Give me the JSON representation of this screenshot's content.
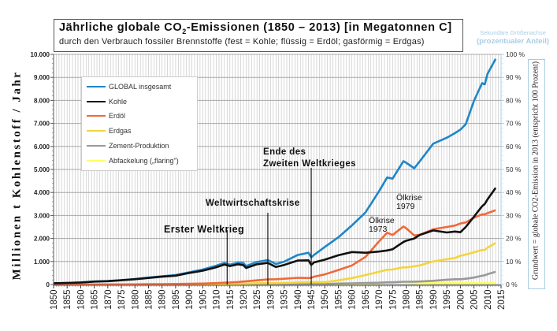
{
  "chart_data": {
    "type": "line",
    "title": "Jährliche globale CO2-Emissionen (1850 – 2013) [in Megatonnen C]",
    "title_parts": {
      "pre": "Jährliche globale CO",
      "sub": "2",
      "post": "-Emissionen (1850 – 2013) [in Megatonnen C]"
    },
    "subtitle": "durch den Verbrauch fossiler Brennstoffe (fest = Kohle; flüssig = Erdöl; gasförmig = Erdgas)",
    "xlabel": "",
    "ylabel": "Millionen t Kohlenstoff / Jahr",
    "y2label": "Grundwert = globale CO2-Emission in 2013 (entspricht 100 Prozent)",
    "secondary_axis_note": {
      "line1": "Sekundäre Größenachse",
      "line2": "(prozentualer Anteil)"
    },
    "xlim": [
      1850,
      2015
    ],
    "ylim": [
      0,
      10000
    ],
    "y2lim": [
      0,
      100
    ],
    "grid": true,
    "legend_position": "top-left",
    "x_ticks": [
      "1850",
      "1855",
      "1860",
      "1865",
      "1870",
      "1875",
      "1880",
      "1885",
      "1890",
      "1895",
      "1900",
      "1905",
      "1910",
      "1915",
      "1920",
      "1925",
      "1930",
      "1935",
      "1940",
      "1945",
      "1950",
      "1955",
      "1960",
      "1965",
      "1970",
      "1975",
      "1980",
      "1985",
      "1990",
      "1995",
      "2000",
      "2005",
      "2010",
      "2015"
    ],
    "y_ticks": [
      "0",
      "1.000",
      "2.000",
      "3.000",
      "4.000",
      "5.000",
      "6.000",
      "7.000",
      "8.000",
      "9.000",
      "10.000"
    ],
    "y2_ticks": [
      "0 %",
      "10 %",
      "20 %",
      "30 %",
      "40 %",
      "50 %",
      "60 %",
      "70 %",
      "80 %",
      "90 %",
      "100 %"
    ],
    "x": [
      1850,
      1855,
      1860,
      1865,
      1870,
      1875,
      1880,
      1885,
      1890,
      1895,
      1900,
      1905,
      1910,
      1913,
      1915,
      1918,
      1920,
      1921,
      1925,
      1929,
      1932,
      1935,
      1940,
      1944,
      1945,
      1946,
      1950,
      1955,
      1960,
      1965,
      1970,
      1973,
      1975,
      1979,
      1980,
      1983,
      1985,
      1990,
      1995,
      1998,
      2000,
      2002,
      2005,
      2008,
      2009,
      2010,
      2013
    ],
    "series": [
      {
        "name": "GLOBAL insgesamt",
        "color": "#1f86c8",
        "values": [
          54,
          70,
          90,
          130,
          150,
          190,
          240,
          300,
          360,
          410,
          530,
          650,
          820,
          940,
          860,
          950,
          930,
          800,
          980,
          1060,
          890,
          990,
          1280,
          1380,
          1180,
          1280,
          1630,
          2050,
          2570,
          3130,
          4050,
          4650,
          4600,
          5360,
          5290,
          5050,
          5350,
          6120,
          6380,
          6580,
          6730,
          6970,
          7980,
          8750,
          8700,
          9150,
          9800
        ]
      },
      {
        "name": "Kohle",
        "color": "#111111",
        "values": [
          54,
          68,
          88,
          126,
          145,
          185,
          230,
          285,
          340,
          385,
          500,
          600,
          750,
          870,
          800,
          880,
          840,
          720,
          880,
          940,
          760,
          850,
          1040,
          1050,
          850,
          960,
          1080,
          1270,
          1410,
          1380,
          1430,
          1480,
          1530,
          1850,
          1900,
          2000,
          2150,
          2350,
          2260,
          2300,
          2270,
          2500,
          2950,
          3400,
          3500,
          3700,
          4200
        ]
      },
      {
        "name": "Erdöl",
        "color": "#f0683a",
        "values": [
          0,
          0,
          1,
          2,
          3,
          5,
          8,
          12,
          18,
          25,
          30,
          40,
          60,
          80,
          90,
          110,
          130,
          140,
          180,
          220,
          230,
          250,
          290,
          280,
          290,
          340,
          440,
          630,
          830,
          1200,
          1870,
          2250,
          2150,
          2520,
          2450,
          2130,
          2160,
          2400,
          2500,
          2560,
          2650,
          2700,
          2900,
          3050,
          3050,
          3100,
          3230
        ]
      },
      {
        "name": "Erdgas",
        "color": "#f3d53c",
        "values": [
          0,
          0,
          0,
          0,
          0,
          0,
          0,
          0,
          5,
          8,
          10,
          15,
          20,
          30,
          30,
          35,
          40,
          40,
          55,
          60,
          60,
          70,
          90,
          100,
          100,
          110,
          100,
          180,
          280,
          410,
          550,
          640,
          650,
          750,
          740,
          790,
          830,
          1000,
          1100,
          1150,
          1250,
          1300,
          1400,
          1500,
          1500,
          1600,
          1800
        ]
      },
      {
        "name": "Zement-Produktion",
        "color": "#999999",
        "values": [
          0,
          0,
          0,
          0,
          0,
          0,
          0,
          0,
          0,
          0,
          0,
          0,
          0,
          0,
          0,
          0,
          0,
          0,
          10,
          15,
          12,
          15,
          20,
          20,
          20,
          22,
          20,
          40,
          50,
          70,
          80,
          95,
          95,
          120,
          120,
          125,
          130,
          160,
          210,
          230,
          230,
          250,
          300,
          380,
          400,
          450,
          550
        ]
      },
      {
        "name": "Abfackelung („flaring\")",
        "color": "#ffff66",
        "values": [
          0,
          0,
          0,
          0,
          0,
          0,
          0,
          0,
          0,
          0,
          0,
          0,
          0,
          0,
          0,
          0,
          0,
          0,
          0,
          0,
          0,
          0,
          0,
          0,
          0,
          5,
          20,
          30,
          40,
          50,
          70,
          80,
          80,
          90,
          80,
          60,
          55,
          60,
          60,
          60,
          60,
          60,
          60,
          65,
          65,
          65,
          70
        ]
      }
    ],
    "annotations": [
      {
        "text": "Erster Weltkrieg",
        "x": 1914
      },
      {
        "text": "Weltwirtschaftskrise",
        "x": 1929
      },
      {
        "text": "Ende des",
        "x": 1945
      },
      {
        "text": "Zweiten Weltkrieges",
        "x": 1945
      },
      {
        "text": "Ölkrise",
        "x": 1973
      },
      {
        "text": "1973",
        "x": 1973
      },
      {
        "text": "Ölkrise",
        "x": 1979
      },
      {
        "text": "1979",
        "x": 1979
      }
    ],
    "event_lines": [
      1914,
      1929,
      1945
    ]
  }
}
